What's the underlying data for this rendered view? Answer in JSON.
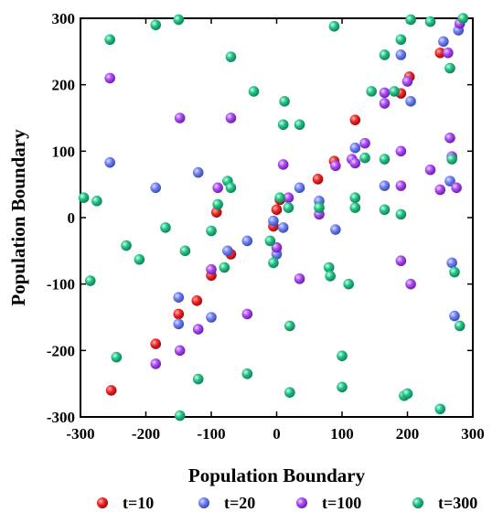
{
  "chart_data": {
    "type": "scatter",
    "xlabel": "Population Boundary",
    "ylabel": "Population Boundary",
    "xlim": [
      -300,
      300
    ],
    "ylim": [
      -300,
      300
    ],
    "xticks": [
      -300,
      -200,
      -100,
      0,
      100,
      200,
      300
    ],
    "yticks": [
      -300,
      -200,
      -100,
      0,
      100,
      200,
      300
    ],
    "grid": false,
    "legend_position": "bottom",
    "series": [
      {
        "name": "t=10",
        "color": "#e8131b",
        "points": [
          [
            -253,
            -260
          ],
          [
            -185,
            -190
          ],
          [
            -150,
            -145
          ],
          [
            -122,
            -125
          ],
          [
            -100,
            -87
          ],
          [
            -92,
            8
          ],
          [
            -70,
            -55
          ],
          [
            -5,
            -13
          ],
          [
            0,
            12
          ],
          [
            5,
            27
          ],
          [
            63,
            58
          ],
          [
            88,
            85
          ],
          [
            120,
            147
          ],
          [
            190,
            187
          ],
          [
            203,
            212
          ],
          [
            250,
            248
          ]
        ]
      },
      {
        "name": "t=20",
        "color": "#5b6fe6",
        "points": [
          [
            -255,
            83
          ],
          [
            -185,
            45
          ],
          [
            -150,
            -120
          ],
          [
            -150,
            -160
          ],
          [
            -120,
            68
          ],
          [
            -100,
            -150
          ],
          [
            -75,
            -50
          ],
          [
            -45,
            -35
          ],
          [
            -5,
            -5
          ],
          [
            0,
            -55
          ],
          [
            10,
            -15
          ],
          [
            35,
            45
          ],
          [
            65,
            25
          ],
          [
            90,
            -18
          ],
          [
            120,
            105
          ],
          [
            165,
            48
          ],
          [
            190,
            245
          ],
          [
            205,
            175
          ],
          [
            255,
            265
          ],
          [
            265,
            55
          ],
          [
            268,
            -68
          ],
          [
            272,
            -148
          ],
          [
            278,
            282
          ]
        ]
      },
      {
        "name": "t=100",
        "color": "#a03ee8",
        "points": [
          [
            -255,
            210
          ],
          [
            -185,
            -220
          ],
          [
            -148,
            150
          ],
          [
            -148,
            -200
          ],
          [
            -120,
            -168
          ],
          [
            -100,
            -78
          ],
          [
            -90,
            45
          ],
          [
            -70,
            150
          ],
          [
            -45,
            -145
          ],
          [
            0,
            -45
          ],
          [
            10,
            80
          ],
          [
            18,
            30
          ],
          [
            35,
            -92
          ],
          [
            65,
            5
          ],
          [
            90,
            78
          ],
          [
            115,
            88
          ],
          [
            120,
            82
          ],
          [
            135,
            112
          ],
          [
            165,
            172
          ],
          [
            165,
            188
          ],
          [
            190,
            48
          ],
          [
            190,
            100
          ],
          [
            190,
            -65
          ],
          [
            200,
            205
          ],
          [
            205,
            -100
          ],
          [
            235,
            72
          ],
          [
            250,
            42
          ],
          [
            262,
            248
          ],
          [
            265,
            120
          ],
          [
            268,
            92
          ],
          [
            275,
            45
          ],
          [
            280,
            292
          ]
        ]
      },
      {
        "name": "t=300",
        "color": "#1db87f",
        "points": [
          [
            -295,
            30
          ],
          [
            -285,
            -95
          ],
          [
            -275,
            25
          ],
          [
            -255,
            268
          ],
          [
            -245,
            -210
          ],
          [
            -230,
            -42
          ],
          [
            -210,
            -63
          ],
          [
            -185,
            290
          ],
          [
            -170,
            -15
          ],
          [
            -150,
            298
          ],
          [
            -148,
            -298
          ],
          [
            -140,
            -50
          ],
          [
            -120,
            -243
          ],
          [
            -100,
            -20
          ],
          [
            -90,
            20
          ],
          [
            -80,
            -75
          ],
          [
            -75,
            55
          ],
          [
            -70,
            45
          ],
          [
            -70,
            242
          ],
          [
            -45,
            -235
          ],
          [
            -35,
            190
          ],
          [
            -10,
            -35
          ],
          [
            -5,
            -68
          ],
          [
            5,
            30
          ],
          [
            10,
            140
          ],
          [
            12,
            175
          ],
          [
            18,
            15
          ],
          [
            20,
            -163
          ],
          [
            20,
            -263
          ],
          [
            35,
            140
          ],
          [
            65,
            15
          ],
          [
            80,
            -75
          ],
          [
            82,
            -88
          ],
          [
            88,
            288
          ],
          [
            100,
            -208
          ],
          [
            100,
            -255
          ],
          [
            110,
            -100
          ],
          [
            120,
            30
          ],
          [
            120,
            15
          ],
          [
            135,
            90
          ],
          [
            145,
            190
          ],
          [
            165,
            245
          ],
          [
            165,
            12
          ],
          [
            165,
            88
          ],
          [
            180,
            190
          ],
          [
            190,
            268
          ],
          [
            190,
            5
          ],
          [
            195,
            -268
          ],
          [
            200,
            -265
          ],
          [
            205,
            298
          ],
          [
            235,
            295
          ],
          [
            250,
            -288
          ],
          [
            265,
            225
          ],
          [
            268,
            88
          ],
          [
            272,
            -82
          ],
          [
            280,
            -163
          ],
          [
            285,
            300
          ]
        ]
      }
    ]
  }
}
